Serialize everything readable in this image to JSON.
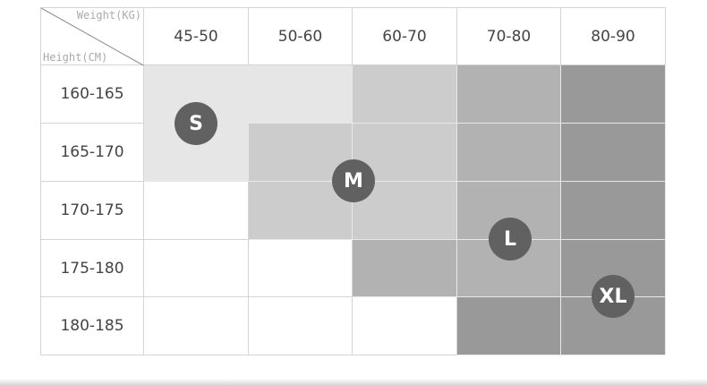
{
  "corner": {
    "weight_label": "Weight(KG)",
    "height_label": "Height(CM)"
  },
  "weights": [
    "45-50",
    "50-60",
    "60-70",
    "70-80",
    "80-90"
  ],
  "heights": [
    "160-165",
    "165-170",
    "170-175",
    "175-180",
    "180-185"
  ],
  "sizes": {
    "S": "#e6e6e6",
    "M": "#cccccc",
    "L": "#b2b2b2",
    "XL": "#999999"
  },
  "grid": [
    [
      "S",
      "S",
      "M",
      "L",
      "XL"
    ],
    [
      "S",
      "M",
      "M",
      "L",
      "XL"
    ],
    [
      "",
      "M",
      "M",
      "L",
      "XL"
    ],
    [
      "",
      "",
      "L",
      "L",
      "XL"
    ],
    [
      "",
      "",
      "",
      "XL",
      "XL"
    ]
  ],
  "badges": {
    "s": "S",
    "m": "M",
    "l": "L",
    "xl": "XL"
  },
  "badge_color": "#616161"
}
